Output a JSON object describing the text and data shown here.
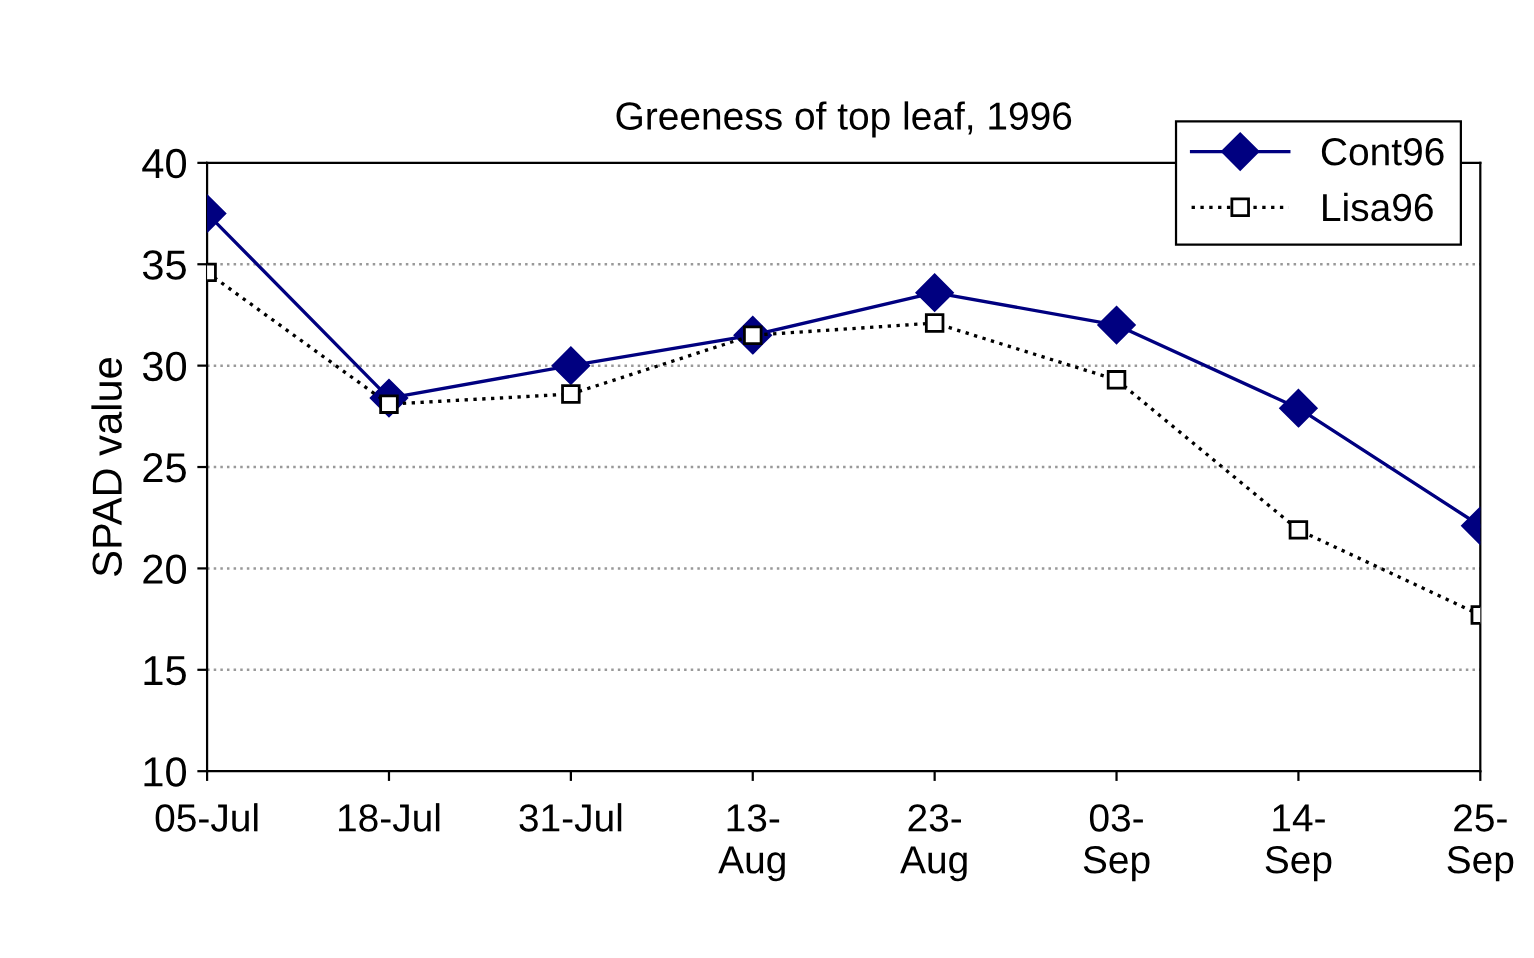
{
  "chart_data": {
    "type": "line",
    "title": "Greeness of top leaf, 1996",
    "ylabel": "SPAD value",
    "categories": [
      "05-Jul",
      "18-Jul",
      "31-Jul",
      "13-\nAug",
      "23-\nAug",
      "03-\nSep",
      "14-\nSep",
      "25-\nSep"
    ],
    "series": [
      {
        "name": "Cont96",
        "color": "#000080",
        "marker": "diamond",
        "line_style": "solid",
        "values": [
          37.5,
          28.4,
          30.0,
          31.5,
          33.6,
          32.0,
          27.9,
          22.1
        ]
      },
      {
        "name": "Lisa96",
        "color": "#000000",
        "marker": "square",
        "line_style": "dotted",
        "values": [
          34.6,
          28.1,
          28.6,
          31.5,
          32.1,
          29.3,
          21.9,
          17.7
        ]
      }
    ],
    "ylim": [
      10,
      40
    ],
    "yticks": [
      10,
      15,
      20,
      25,
      30,
      35,
      40
    ],
    "grid": "y",
    "legend": "top right"
  }
}
